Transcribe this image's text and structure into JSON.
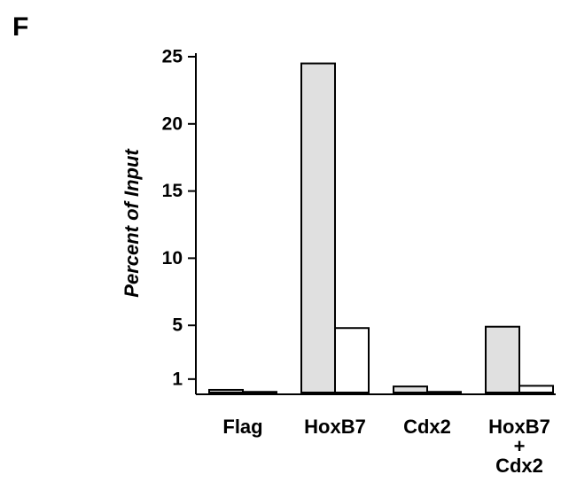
{
  "panel_label": "F",
  "colors": {
    "axis": "#000000",
    "series_filled": "#e0e0e0",
    "series_open": "#ffffff"
  },
  "chart_data": {
    "type": "bar",
    "title": "",
    "xlabel": "",
    "ylabel": "Percent of Input",
    "ylim": [
      0,
      25
    ],
    "yticks": [
      1,
      5,
      10,
      15,
      20,
      25
    ],
    "ytick_labels": [
      "1",
      "5",
      "10",
      "15",
      "20",
      "25"
    ],
    "categories": [
      [
        "Flag"
      ],
      [
        "HoxB7"
      ],
      [
        "Cdx2"
      ],
      [
        "HoxB7",
        "+",
        "Cdx2"
      ]
    ],
    "series": [
      {
        "color": "#e0e0e0",
        "values": [
          0.2,
          24.5,
          0.45,
          4.9
        ]
      },
      {
        "color": "#ffffff",
        "values": [
          0.05,
          4.8,
          0.05,
          0.5
        ]
      }
    ],
    "grid": false,
    "legend": "none"
  }
}
